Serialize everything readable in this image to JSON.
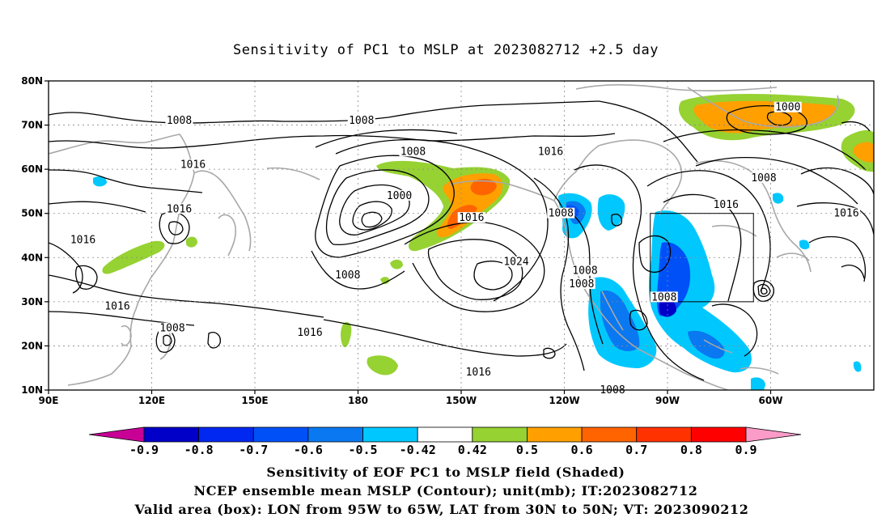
{
  "title": "Sensitivity of PC1 to MSLP at 2023082712 +2.5 day",
  "map": {
    "lat_ticks": [
      "80N",
      "70N",
      "60N",
      "50N",
      "40N",
      "30N",
      "20N",
      "10N"
    ],
    "lon_ticks": [
      "90E",
      "120E",
      "150E",
      "180",
      "150W",
      "120W",
      "90W",
      "60W"
    ],
    "contour_labels": [
      {
        "text": "1008",
        "lon": 128,
        "lat": 71
      },
      {
        "text": "1016",
        "lon": 132,
        "lat": 61
      },
      {
        "text": "1008",
        "lon": 181,
        "lat": 71
      },
      {
        "text": "1008",
        "lon": 196,
        "lat": 64
      },
      {
        "text": "1016",
        "lon": 236,
        "lat": 64
      },
      {
        "text": "1000",
        "lon": 305,
        "lat": 74
      },
      {
        "text": "1008",
        "lon": 298,
        "lat": 58
      },
      {
        "text": "1016",
        "lon": 287,
        "lat": 52
      },
      {
        "text": "1016",
        "lon": 322,
        "lat": 50
      },
      {
        "text": "1016",
        "lon": 128,
        "lat": 51
      },
      {
        "text": "1016",
        "lon": 100,
        "lat": 44
      },
      {
        "text": "1016",
        "lon": 110,
        "lat": 29
      },
      {
        "text": "1008",
        "lon": 126,
        "lat": 24
      },
      {
        "text": "1016",
        "lon": 166,
        "lat": 23
      },
      {
        "text": "1000",
        "lon": 192,
        "lat": 54
      },
      {
        "text": "1016",
        "lon": 213,
        "lat": 49
      },
      {
        "text": "1008",
        "lon": 239,
        "lat": 50
      },
      {
        "text": "1024",
        "lon": 226,
        "lat": 39
      },
      {
        "text": "1008",
        "lon": 177,
        "lat": 36
      },
      {
        "text": "1008",
        "lon": 246,
        "lat": 37
      },
      {
        "text": "1008",
        "lon": 245,
        "lat": 34
      },
      {
        "text": "1008",
        "lon": 269,
        "lat": 31
      },
      {
        "text": "1016",
        "lon": 215,
        "lat": 14
      },
      {
        "text": "1008",
        "lon": 254,
        "lat": 10
      }
    ],
    "valid_box": {
      "lon_min": 265,
      "lon_max": 295,
      "lat_min": 30,
      "lat_max": 50
    }
  },
  "colorbar": {
    "colors": [
      "#c80096",
      "#0000c8",
      "#0028f0",
      "#0050f8",
      "#0a78f0",
      "#00c8ff",
      "#ffffff",
      "#96d232",
      "#ffa000",
      "#ff6400",
      "#ff3200",
      "#ff0000",
      "#fa9bc8"
    ],
    "labels": [
      "-0.9",
      "-0.8",
      "-0.7",
      "-0.6",
      "-0.5",
      "-0.42",
      "0.42",
      "0.5",
      "0.6",
      "0.7",
      "0.8",
      "0.9"
    ]
  },
  "caption": [
    "Sensitivity of EOF PC1 to MSLP field (Shaded)",
    "NCEP ensemble mean MSLP (Contour); unit(mb); IT:2023082712",
    "Valid area (box): LON from 95W to 65W, LAT from 30N to 50N; VT: 2023090212"
  ]
}
